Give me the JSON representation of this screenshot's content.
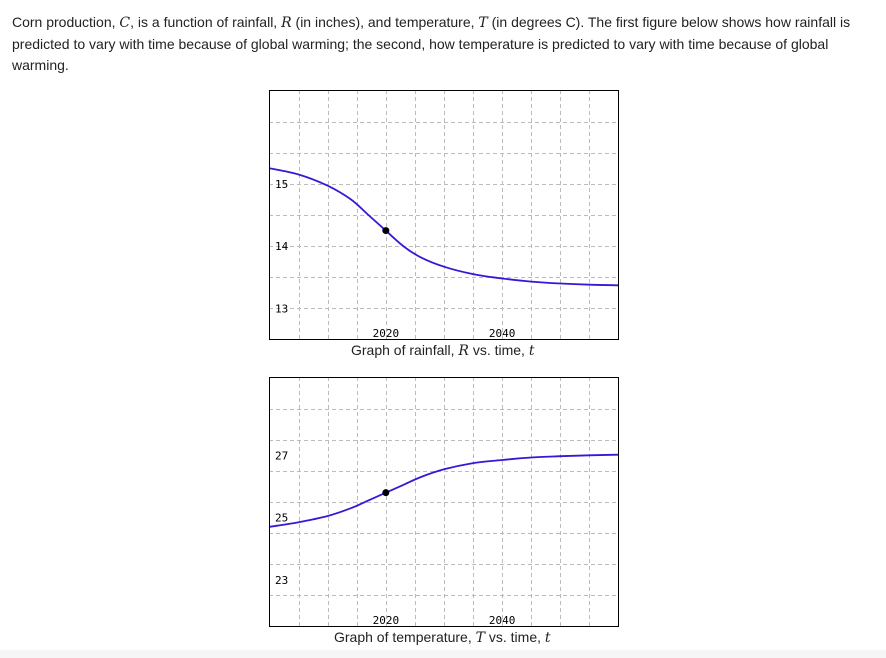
{
  "prompt": {
    "intro": "Corn production, ",
    "var_c": "C",
    "mid1": ", is a function of rainfall, ",
    "var_r": "R",
    "mid2": " (in inches), and temperature, ",
    "var_t": "T",
    "rest": " (in degrees C). The first figure below shows how rainfall is predicted to vary with time because of global warming; the second, how temperature is predicted to vary with time because of global warming."
  },
  "colors": {
    "curve": "#3a16d6",
    "point": "#000000",
    "grid": "#bbbbbb",
    "frame": "#000000"
  },
  "chart_data": [
    {
      "type": "line",
      "caption": {
        "before": "Graph of rainfall, ",
        "var": "R",
        "middle": " vs. time, ",
        "tvar": "t"
      },
      "xlim": [
        2000,
        2060
      ],
      "ylim": [
        12.5,
        16.5
      ],
      "xticks": [
        2020,
        2040
      ],
      "xtick_labels": [
        "2020",
        "2040"
      ],
      "yticks": [
        13,
        14,
        15
      ],
      "ytick_labels": [
        "13",
        "14",
        "15"
      ],
      "grid": true,
      "series": [
        {
          "x": [
            2000,
            2005,
            2010,
            2014,
            2017,
            2020,
            2023,
            2026,
            2030,
            2035,
            2040,
            2045,
            2050,
            2055,
            2060
          ],
          "y": [
            15.25,
            15.15,
            14.97,
            14.75,
            14.5,
            14.25,
            14.0,
            13.82,
            13.67,
            13.55,
            13.48,
            13.43,
            13.4,
            13.38,
            13.37
          ]
        }
      ],
      "marked_point": {
        "x": 2020,
        "y": 14.25
      }
    },
    {
      "type": "line",
      "caption": {
        "before": "Graph of temperature, ",
        "var": "T",
        "middle": " vs. time, ",
        "tvar": "t"
      },
      "xlim": [
        2000,
        2060
      ],
      "ylim": [
        21.5,
        29.5
      ],
      "xticks": [
        2020,
        2040
      ],
      "xtick_labels": [
        "2020",
        "2040"
      ],
      "yticks": [
        23,
        25,
        27
      ],
      "ytick_labels": [
        "23",
        "25",
        "27"
      ],
      "grid": true,
      "series": [
        {
          "x": [
            2000,
            2005,
            2010,
            2014,
            2017,
            2020,
            2023,
            2026,
            2030,
            2035,
            2040,
            2045,
            2050,
            2055,
            2060
          ],
          "y": [
            24.7,
            24.85,
            25.05,
            25.3,
            25.55,
            25.8,
            26.05,
            26.3,
            26.55,
            26.75,
            26.85,
            26.93,
            26.97,
            27.0,
            27.02
          ]
        }
      ],
      "marked_point": {
        "x": 2020,
        "y": 25.8
      }
    }
  ]
}
